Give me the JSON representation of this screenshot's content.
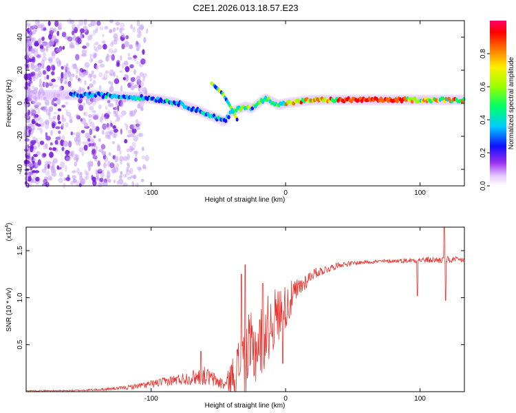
{
  "title": "C2E1.2026.013.18.57.E23",
  "colors": {
    "background": "#ffffff",
    "snr_line": "#e8302a",
    "scatter_noise": "#7a1fe0",
    "axis": "#000000"
  },
  "chart_data": [
    {
      "type": "heatmap",
      "name": "spectrogram",
      "xlabel": "Height of straight line (km)",
      "ylabel": "Frequency (Hz)",
      "xlim": [
        -193,
        133
      ],
      "ylim": [
        -50,
        50
      ],
      "xticks": [
        -100,
        0,
        100
      ],
      "yticks": [
        -40,
        -20,
        0,
        20,
        40
      ],
      "xtick_labels": [
        "-100",
        "0",
        "100"
      ],
      "ytick_labels": [
        "-40",
        "-20",
        "0",
        "20",
        "40"
      ],
      "colorbar": {
        "label": "Normalized spectral amplitude",
        "range": [
          0,
          1
        ],
        "ticks": [
          0.0,
          0.2,
          0.4,
          0.6,
          0.8
        ],
        "tick_labels": [
          "0.0",
          "0.2",
          "0.4",
          "0.6",
          "0.8"
        ],
        "colormap": [
          "#ffffff",
          "#cc88ff",
          "#8800ee",
          "#0000ff",
          "#00ffff",
          "#00ff00",
          "#ffff00",
          "#ff8800",
          "#ff0000",
          "#ff0077"
        ]
      },
      "ridge": {
        "description_points_x": [
          -140,
          -120,
          -100,
          -80,
          -60,
          -45,
          -40,
          -30,
          -25,
          -15,
          -5,
          0,
          20,
          40,
          60,
          80,
          100,
          120,
          133
        ],
        "description_points_y": [
          5,
          4,
          3,
          0,
          -6,
          -11,
          -5,
          -2,
          -3,
          3,
          -1,
          0,
          2,
          2,
          2,
          2,
          2,
          2,
          2
        ],
        "branch_x": [
          -55,
          -47,
          -41,
          -36
        ],
        "branch_y": [
          12,
          6,
          -2,
          -10
        ]
      }
    },
    {
      "type": "line",
      "name": "snr",
      "xlabel": "Height of straight line (km)",
      "ylabel": "SNR (10 * v/v)",
      "exponent_label": "(x10",
      "exponent_power": "4",
      "exponent_close": ")",
      "xlim": [
        -193,
        133
      ],
      "ylim": [
        0,
        1.75
      ],
      "xticks": [
        -100,
        0,
        100
      ],
      "yticks": [
        0.5,
        1.0,
        1.5
      ],
      "xtick_labels": [
        "-100",
        "0",
        "100"
      ],
      "ytick_labels": [
        "0.5",
        "1.0",
        "1.5"
      ],
      "envelope_x": [
        -193,
        -160,
        -140,
        -120,
        -100,
        -80,
        -60,
        -45,
        -30,
        -20,
        -10,
        0,
        10,
        20,
        40,
        60,
        80,
        100,
        120,
        133
      ],
      "envelope_y": [
        0.01,
        0.01,
        0.02,
        0.04,
        0.08,
        0.13,
        0.17,
        0.07,
        0.35,
        0.5,
        0.75,
        0.9,
        1.1,
        1.25,
        1.35,
        1.38,
        1.39,
        1.4,
        1.4,
        1.4
      ],
      "noise_amplitude": [
        0.005,
        0.008,
        0.012,
        0.02,
        0.04,
        0.06,
        0.1,
        0.06,
        0.45,
        0.4,
        0.35,
        0.25,
        0.12,
        0.06,
        0.03,
        0.02,
        0.02,
        0.03,
        0.04,
        0.03
      ],
      "spikes": [
        {
          "x": -63,
          "y": 0.43
        },
        {
          "x": -30,
          "y": 1.35
        },
        {
          "x": -33,
          "y": 1.25
        },
        {
          "x": -17,
          "y": 1.15
        },
        {
          "x": -2,
          "y": 0.3
        },
        {
          "x": 98,
          "y": 1.02
        },
        {
          "x": 118,
          "y": 1.75
        },
        {
          "x": 119,
          "y": 0.97
        }
      ]
    }
  ]
}
